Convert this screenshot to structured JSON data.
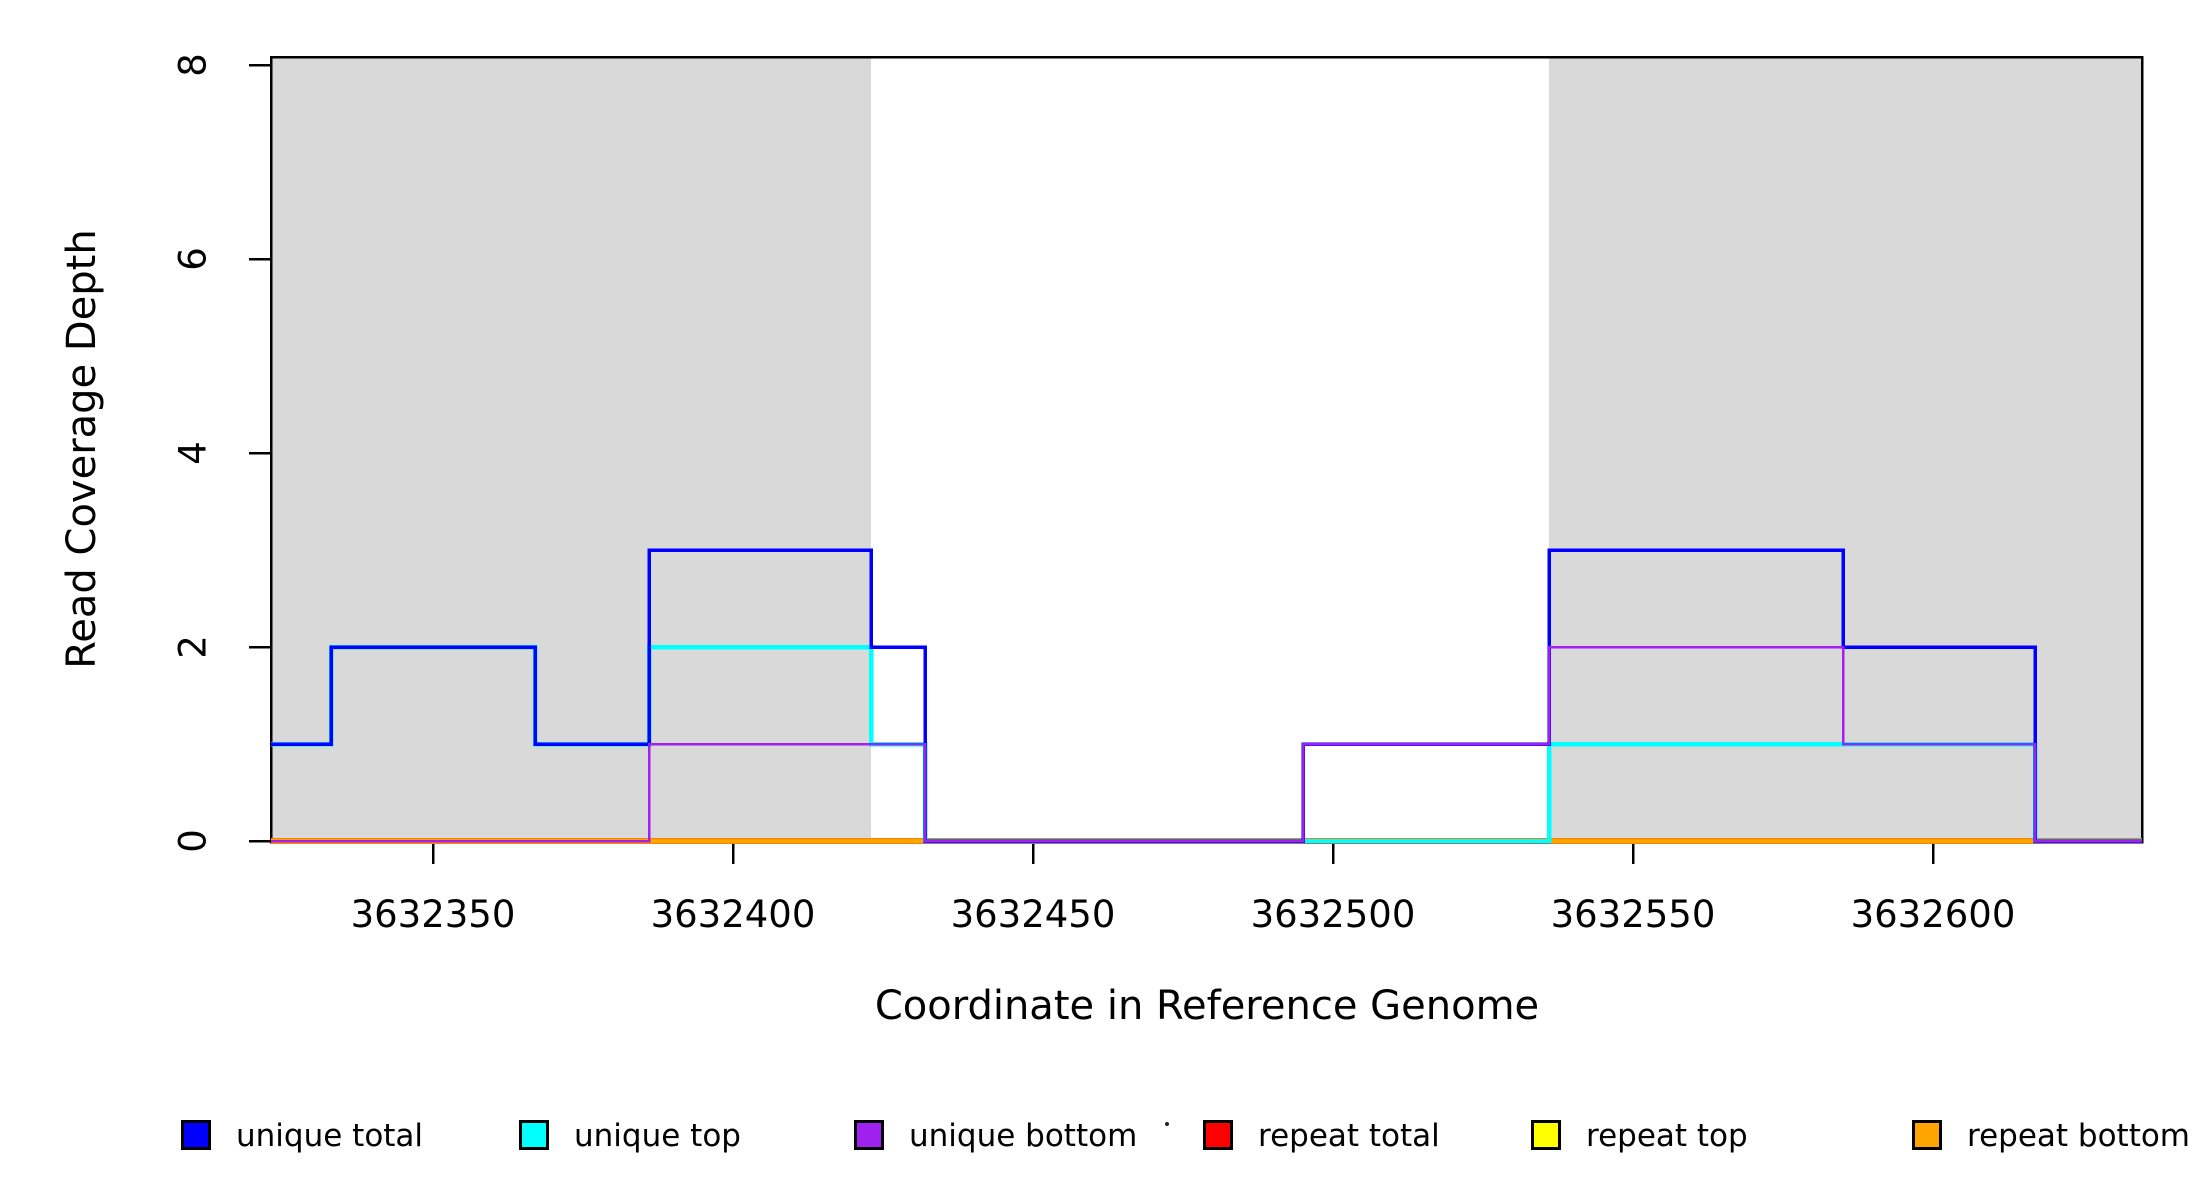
{
  "figure": {
    "background": "#ffffff",
    "plot_border_color": "#000000",
    "shaded_band_color": "#d9d9d9"
  },
  "chart_data": {
    "type": "line",
    "subtype": "step-coverage",
    "title": "",
    "xlabel": "Coordinate in Reference Genome",
    "ylabel": "Read Coverage Depth",
    "xlim": [
      3632323,
      3632635
    ],
    "ylim": [
      0,
      8
    ],
    "x_ticks": [
      3632350,
      3632400,
      3632450,
      3632500,
      3632550,
      3632600
    ],
    "y_ticks": [
      0,
      2,
      4,
      6,
      8
    ],
    "grid": false,
    "legend_position": "bottom-horizontal",
    "shaded_regions": [
      {
        "label": "repeat-region-left",
        "from": 3632323,
        "to": 3632423
      },
      {
        "label": "repeat-region-right",
        "from": 3632536,
        "to": 3632635
      }
    ],
    "series": [
      {
        "name": "repeat total",
        "color": "#FF0000",
        "draw_width": 6,
        "segments": [
          {
            "from": 3632323,
            "to": 3632635,
            "depth": 0
          }
        ]
      },
      {
        "name": "repeat top",
        "color": "#FFFF00",
        "draw_width": 5,
        "segments": [
          {
            "from": 3632323,
            "to": 3632635,
            "depth": 0
          }
        ]
      },
      {
        "name": "repeat bottom",
        "color": "#FFA500",
        "draw_width": 4,
        "segments": [
          {
            "from": 3632323,
            "to": 3632635,
            "depth": 0
          }
        ]
      },
      {
        "name": "unique top",
        "color": "#00FFFF",
        "draw_width": 4.5,
        "segments": [
          {
            "from": 3632323,
            "to": 3632333,
            "depth": 1
          },
          {
            "from": 3632333,
            "to": 3632367,
            "depth": 2
          },
          {
            "from": 3632367,
            "to": 3632386,
            "depth": 1
          },
          {
            "from": 3632386,
            "to": 3632423,
            "depth": 2
          },
          {
            "from": 3632423,
            "to": 3632432,
            "depth": 1
          },
          {
            "from": 3632432,
            "to": 3632536,
            "depth": 0
          },
          {
            "from": 3632536,
            "to": 3632617,
            "depth": 1
          },
          {
            "from": 3632617,
            "to": 3632635,
            "depth": 0
          }
        ]
      },
      {
        "name": "unique total",
        "color": "#0000FF",
        "draw_width": 3.5,
        "segments": [
          {
            "from": 3632323,
            "to": 3632333,
            "depth": 1
          },
          {
            "from": 3632333,
            "to": 3632367,
            "depth": 2
          },
          {
            "from": 3632367,
            "to": 3632386,
            "depth": 1
          },
          {
            "from": 3632386,
            "to": 3632423,
            "depth": 3
          },
          {
            "from": 3632423,
            "to": 3632432,
            "depth": 2
          },
          {
            "from": 3632432,
            "to": 3632495,
            "depth": 0
          },
          {
            "from": 3632495,
            "to": 3632536,
            "depth": 1
          },
          {
            "from": 3632536,
            "to": 3632585,
            "depth": 3
          },
          {
            "from": 3632585,
            "to": 3632617,
            "depth": 2
          },
          {
            "from": 3632617,
            "to": 3632635,
            "depth": 0
          }
        ]
      },
      {
        "name": "unique bottom",
        "color": "#A020F0",
        "draw_width": 2.5,
        "segments": [
          {
            "from": 3632323,
            "to": 3632386,
            "depth": 0
          },
          {
            "from": 3632386,
            "to": 3632432,
            "depth": 1
          },
          {
            "from": 3632432,
            "to": 3632495,
            "depth": 0
          },
          {
            "from": 3632495,
            "to": 3632536,
            "depth": 1
          },
          {
            "from": 3632536,
            "to": 3632585,
            "depth": 2
          },
          {
            "from": 3632585,
            "to": 3632617,
            "depth": 1
          },
          {
            "from": 3632617,
            "to": 3632635,
            "depth": 0
          }
        ]
      }
    ]
  },
  "legend": {
    "items": [
      {
        "label": "unique total",
        "color": "#0000FF"
      },
      {
        "label": "unique top",
        "color": "#00FFFF"
      },
      {
        "label": "unique bottom",
        "color": "#A020F0"
      },
      {
        "label": "repeat total",
        "color": "#FF0000"
      },
      {
        "label": "repeat top",
        "color": "#FFFF00"
      },
      {
        "label": "repeat bottom",
        "color": "#FFA500"
      }
    ]
  }
}
